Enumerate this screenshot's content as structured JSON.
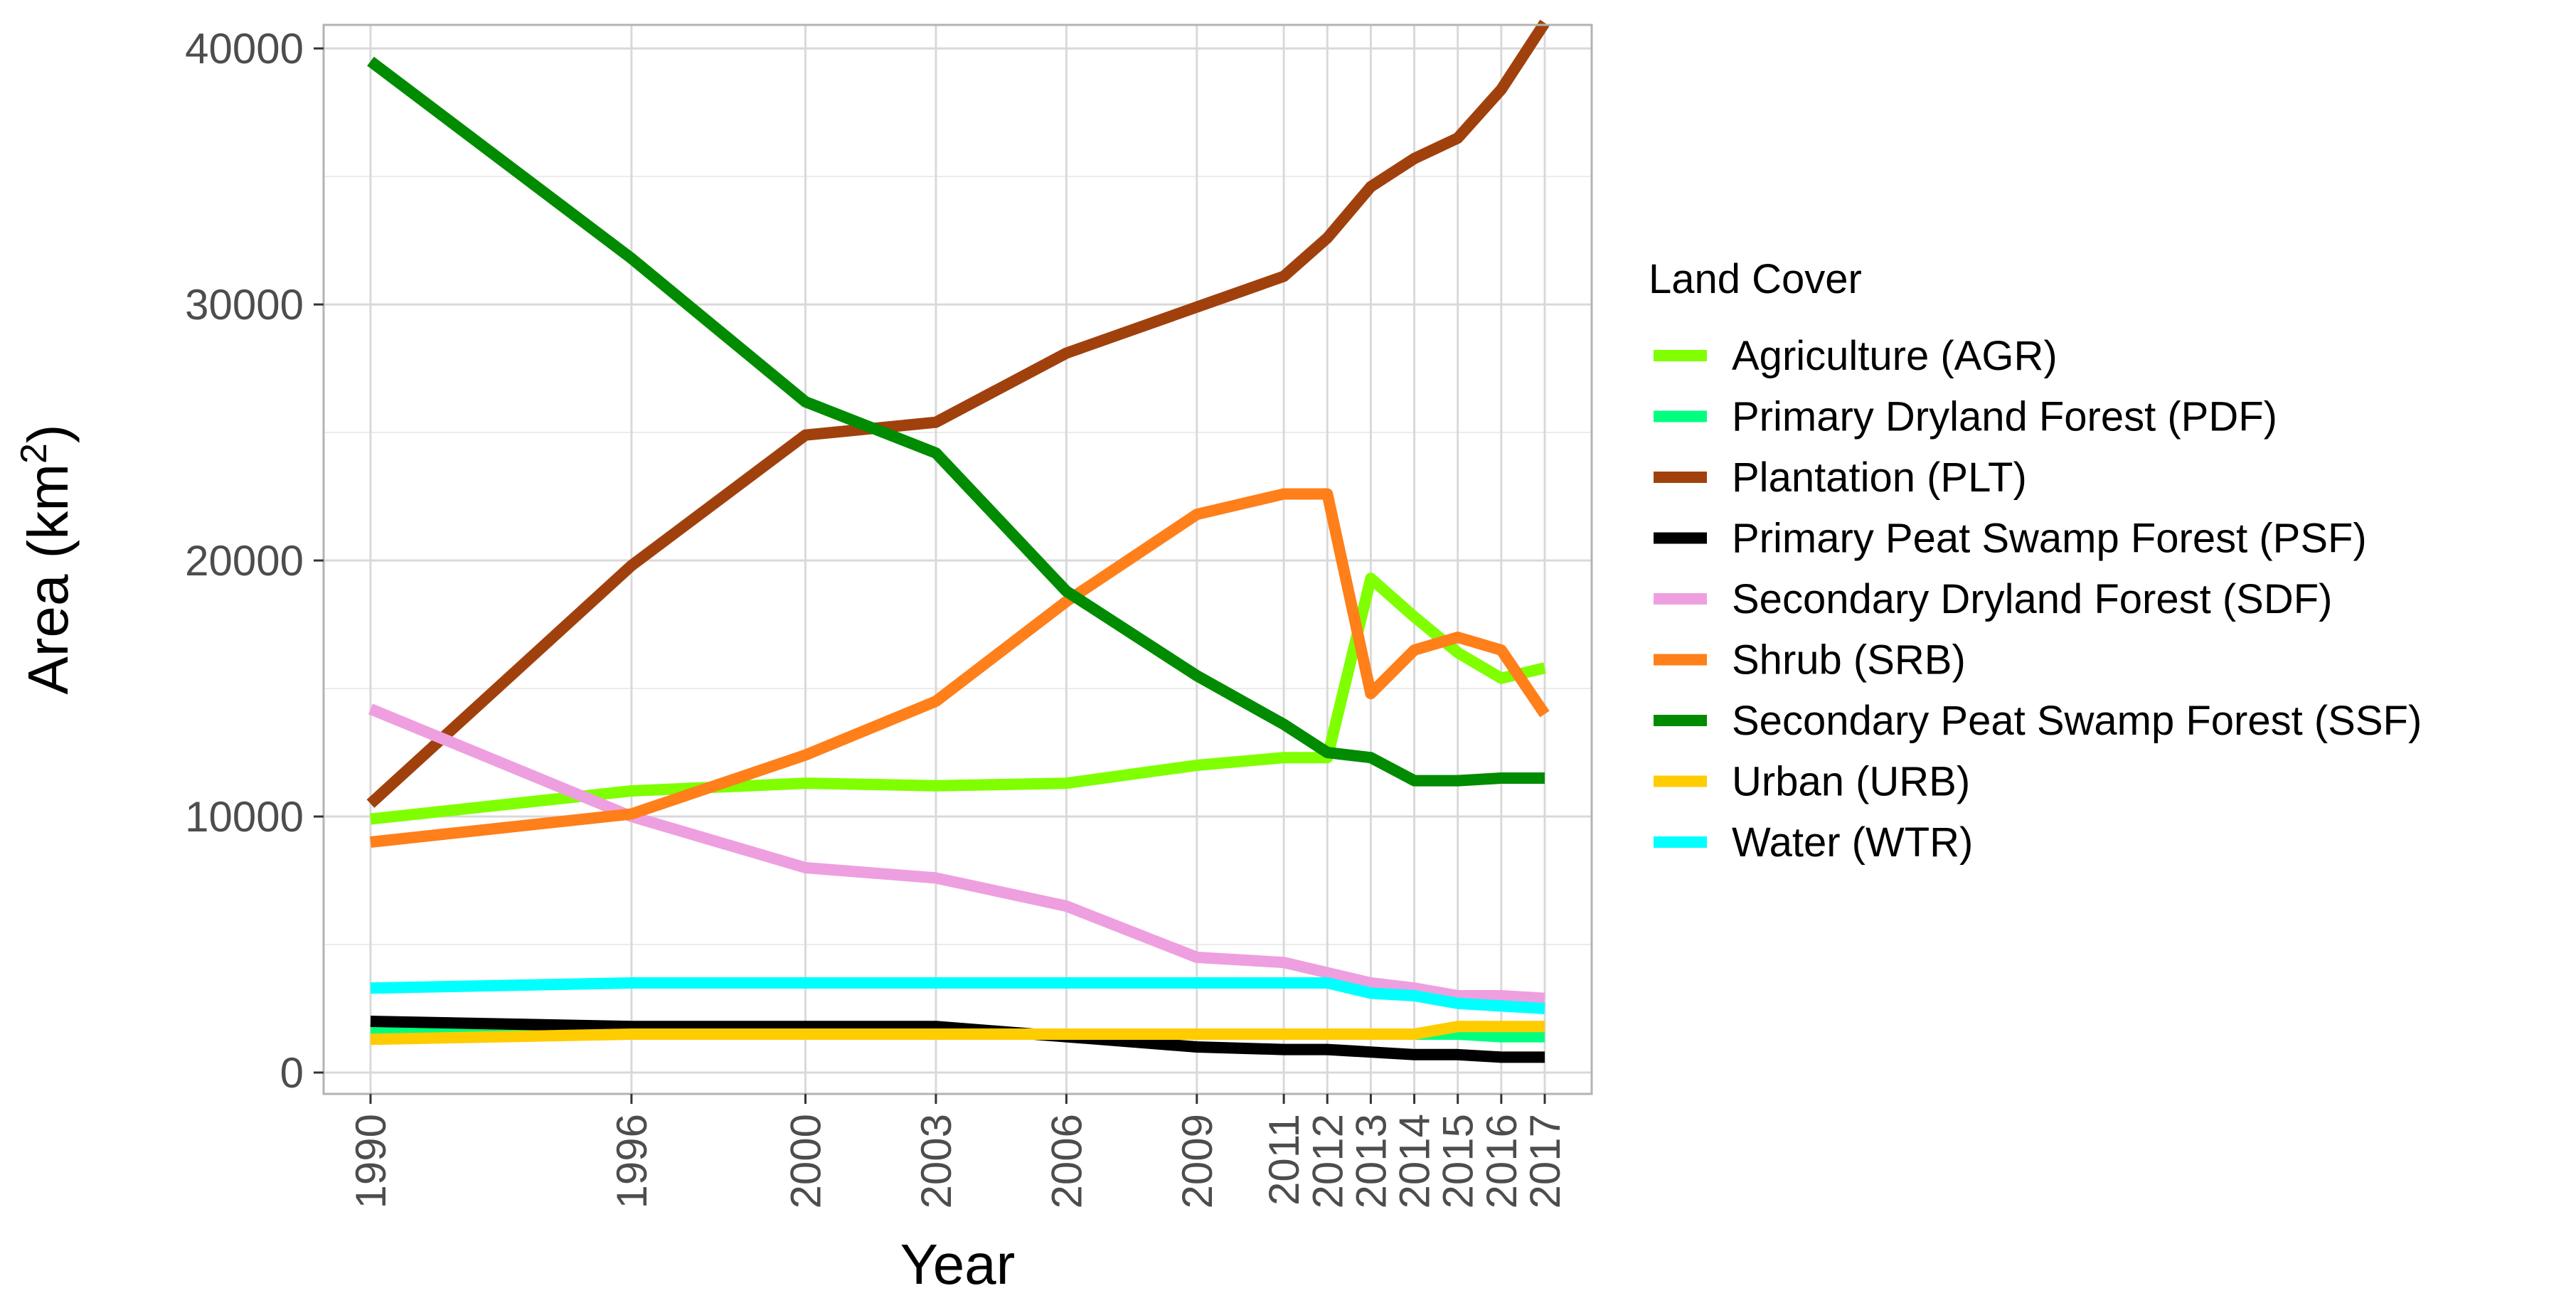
{
  "chart_data": {
    "type": "line",
    "title": "",
    "xlabel": "Year",
    "ylabel_main": "Area (km",
    "ylabel_sup": "2",
    "ylabel_close": ")",
    "ylim": [
      0,
      40500
    ],
    "xlim": [
      1990,
      2017
    ],
    "yticks": [
      0,
      10000,
      20000,
      30000,
      40000
    ],
    "ytick_labels": [
      "0",
      "10000",
      "20000",
      "30000",
      "40000"
    ],
    "x": [
      1990,
      1996,
      2000,
      2003,
      2006,
      2009,
      2011,
      2012,
      2013,
      2014,
      2015,
      2016,
      2017
    ],
    "xtick_labels": [
      "1990",
      "1996",
      "2000",
      "2003",
      "2006",
      "2009",
      "2011",
      "2012",
      "2013",
      "2014",
      "2015",
      "2016",
      "2017"
    ],
    "legend": {
      "title": "Land Cover",
      "position": "right"
    },
    "series": [
      {
        "name": "Agriculture (AGR)",
        "color": "#7FFF00",
        "values": [
          9900,
          11000,
          11300,
          11200,
          11300,
          12000,
          12300,
          12300,
          19300,
          17800,
          16400,
          15400,
          15800
        ]
      },
      {
        "name": "Primary Dryland Forest (PDF)",
        "color": "#00FF7F",
        "values": [
          1600,
          1500,
          1500,
          1500,
          1500,
          1500,
          1500,
          1500,
          1500,
          1500,
          1500,
          1400,
          1400
        ]
      },
      {
        "name": "Plantation (PLT)",
        "color": "#A0410D",
        "values": [
          10500,
          19800,
          24900,
          25400,
          28100,
          29900,
          31100,
          32600,
          34600,
          35700,
          36500,
          38400,
          41000
        ]
      },
      {
        "name": "Primary Peat Swamp Forest (PSF)",
        "color": "#000000",
        "values": [
          2000,
          1800,
          1800,
          1800,
          1400,
          1000,
          900,
          900,
          800,
          700,
          700,
          600,
          600
        ]
      },
      {
        "name": "Secondary Dryland Forest (SDF)",
        "color": "#EE9FE0",
        "values": [
          14200,
          10000,
          8000,
          7600,
          6500,
          4500,
          4300,
          3900,
          3500,
          3300,
          3000,
          3000,
          2900
        ]
      },
      {
        "name": "Shrub (SRB)",
        "color": "#FF7F1A",
        "values": [
          9000,
          10100,
          12400,
          14500,
          18400,
          21800,
          22600,
          22600,
          14800,
          16500,
          17000,
          16500,
          14000
        ]
      },
      {
        "name": "Secondary Peat Swamp Forest (SSF)",
        "color": "#008B00",
        "values": [
          39500,
          31800,
          26200,
          24200,
          18800,
          15500,
          13600,
          12500,
          12300,
          11400,
          11400,
          11500,
          11500
        ]
      },
      {
        "name": "Urban (URB)",
        "color": "#FFCC00",
        "values": [
          1300,
          1500,
          1500,
          1500,
          1500,
          1500,
          1500,
          1500,
          1500,
          1500,
          1800,
          1800,
          1800
        ]
      },
      {
        "name": "Water (WTR)",
        "color": "#00FFFF",
        "values": [
          3300,
          3500,
          3500,
          3500,
          3500,
          3500,
          3500,
          3500,
          3100,
          3000,
          2700,
          2600,
          2500
        ]
      }
    ]
  }
}
